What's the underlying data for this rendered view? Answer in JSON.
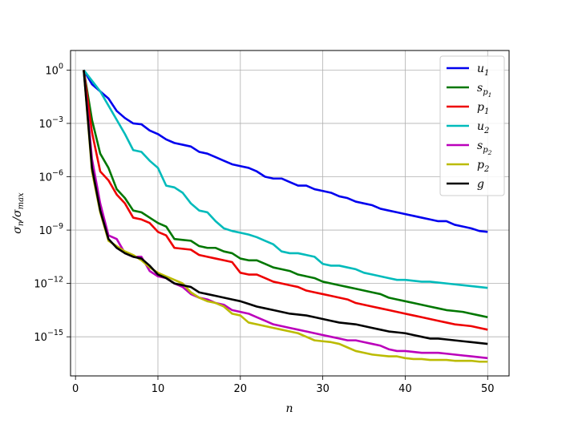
{
  "chart_data": {
    "type": "line",
    "xlabel": "n",
    "ylabel": "σn/σmax",
    "yscale": "log",
    "xlim": [
      -0.6,
      52.6
    ],
    "ylim_exp": [
      -17.2,
      1.1
    ],
    "grid": true,
    "legend_position": "top-right",
    "x_ticks": [
      {
        "value": 0,
        "label": "0"
      },
      {
        "value": 10,
        "label": "10"
      },
      {
        "value": 20,
        "label": "20"
      },
      {
        "value": 30,
        "label": "30"
      },
      {
        "value": 40,
        "label": "40"
      },
      {
        "value": 50,
        "label": "50"
      }
    ],
    "y_ticks": [
      {
        "exp": 0,
        "base": "10",
        "sup": "0"
      },
      {
        "exp": -3,
        "base": "10",
        "sup": "−3"
      },
      {
        "exp": -6,
        "base": "10",
        "sup": "−6"
      },
      {
        "exp": -9,
        "base": "10",
        "sup": "−9"
      },
      {
        "exp": -12,
        "base": "10",
        "sup": "−12"
      },
      {
        "exp": -15,
        "base": "10",
        "sup": "−15"
      }
    ],
    "x": [
      1,
      2,
      3,
      4,
      5,
      6,
      7,
      8,
      9,
      10,
      11,
      12,
      13,
      14,
      15,
      16,
      17,
      18,
      19,
      20,
      21,
      22,
      23,
      24,
      25,
      26,
      27,
      28,
      29,
      30,
      31,
      32,
      33,
      34,
      35,
      36,
      37,
      38,
      39,
      40,
      41,
      42,
      43,
      44,
      45,
      46,
      47,
      48,
      49,
      50
    ],
    "series": [
      {
        "name": "u1",
        "base": "u",
        "sub": "1",
        "color": "#0000ee",
        "log10_values": [
          0,
          -0.8,
          -1.2,
          -1.6,
          -2.3,
          -2.7,
          -3.0,
          -3.05,
          -3.4,
          -3.6,
          -3.9,
          -4.1,
          -4.2,
          -4.3,
          -4.6,
          -4.7,
          -4.9,
          -5.1,
          -5.3,
          -5.4,
          -5.5,
          -5.7,
          -6.0,
          -6.1,
          -6.1,
          -6.3,
          -6.5,
          -6.5,
          -6.7,
          -6.8,
          -6.9,
          -7.1,
          -7.2,
          -7.4,
          -7.5,
          -7.6,
          -7.8,
          -7.9,
          -8.0,
          -8.1,
          -8.2,
          -8.3,
          -8.4,
          -8.5,
          -8.5,
          -8.7,
          -8.8,
          -8.9,
          -9.05,
          -9.1
        ]
      },
      {
        "name": "sp1",
        "base": "s",
        "sub": "p",
        "subsub": "1",
        "color": "#007700",
        "log10_values": [
          0,
          -2.8,
          -4.7,
          -5.5,
          -6.7,
          -7.2,
          -7.9,
          -8.0,
          -8.3,
          -8.6,
          -8.8,
          -9.5,
          -9.55,
          -9.6,
          -9.9,
          -10.0,
          -10.0,
          -10.2,
          -10.3,
          -10.6,
          -10.7,
          -10.7,
          -10.9,
          -11.1,
          -11.2,
          -11.3,
          -11.5,
          -11.6,
          -11.7,
          -11.9,
          -12.0,
          -12.1,
          -12.2,
          -12.3,
          -12.4,
          -12.5,
          -12.6,
          -12.8,
          -12.9,
          -13.0,
          -13.1,
          -13.2,
          -13.3,
          -13.4,
          -13.5,
          -13.55,
          -13.6,
          -13.7,
          -13.8,
          -13.9
        ]
      },
      {
        "name": "p1",
        "base": "p",
        "sub": "1",
        "color": "#ee0000",
        "log10_values": [
          0,
          -3.5,
          -5.7,
          -6.2,
          -7.0,
          -7.5,
          -8.3,
          -8.4,
          -8.6,
          -9.1,
          -9.3,
          -10.0,
          -10.05,
          -10.1,
          -10.4,
          -10.5,
          -10.6,
          -10.7,
          -10.8,
          -11.4,
          -11.5,
          -11.5,
          -11.7,
          -11.9,
          -12.0,
          -12.1,
          -12.2,
          -12.4,
          -12.5,
          -12.6,
          -12.7,
          -12.8,
          -12.9,
          -13.1,
          -13.2,
          -13.3,
          -13.4,
          -13.5,
          -13.6,
          -13.7,
          -13.8,
          -13.9,
          -14.0,
          -14.1,
          -14.2,
          -14.3,
          -14.35,
          -14.4,
          -14.5,
          -14.6
        ]
      },
      {
        "name": "u2",
        "base": "u",
        "sub": "2",
        "color": "#00bbbb",
        "log10_values": [
          0,
          -0.6,
          -1.2,
          -2.0,
          -2.8,
          -3.6,
          -4.5,
          -4.6,
          -5.1,
          -5.5,
          -6.5,
          -6.6,
          -6.9,
          -7.5,
          -7.9,
          -8.0,
          -8.5,
          -8.9,
          -9.05,
          -9.15,
          -9.25,
          -9.4,
          -9.6,
          -9.8,
          -10.2,
          -10.3,
          -10.3,
          -10.4,
          -10.5,
          -10.9,
          -11.0,
          -11.0,
          -11.1,
          -11.2,
          -11.4,
          -11.5,
          -11.6,
          -11.7,
          -11.8,
          -11.8,
          -11.85,
          -11.9,
          -11.9,
          -11.95,
          -12.0,
          -12.05,
          -12.1,
          -12.15,
          -12.2,
          -12.25
        ]
      },
      {
        "name": "sp2",
        "base": "s",
        "sub": "p",
        "subsub": "2",
        "color": "#bb00bb",
        "log10_values": [
          0,
          -5.0,
          -7.5,
          -9.3,
          -9.5,
          -10.3,
          -10.5,
          -10.5,
          -11.3,
          -11.6,
          -11.7,
          -12.0,
          -12.2,
          -12.6,
          -12.8,
          -12.9,
          -13.1,
          -13.2,
          -13.5,
          -13.6,
          -13.7,
          -13.9,
          -14.1,
          -14.3,
          -14.4,
          -14.5,
          -14.6,
          -14.7,
          -14.8,
          -14.9,
          -15.0,
          -15.1,
          -15.2,
          -15.2,
          -15.3,
          -15.4,
          -15.5,
          -15.7,
          -15.8,
          -15.8,
          -15.85,
          -15.9,
          -15.9,
          -15.9,
          -15.95,
          -16.0,
          -16.05,
          -16.1,
          -16.15,
          -16.2
        ]
      },
      {
        "name": "p2",
        "base": "p",
        "sub": "2",
        "color": "#bbbb00",
        "log10_values": [
          0,
          -5.7,
          -8.0,
          -9.6,
          -9.9,
          -10.2,
          -10.4,
          -10.7,
          -11.1,
          -11.4,
          -11.6,
          -11.8,
          -12.0,
          -12.5,
          -12.8,
          -13.0,
          -13.1,
          -13.3,
          -13.7,
          -13.8,
          -14.2,
          -14.3,
          -14.4,
          -14.5,
          -14.6,
          -14.7,
          -14.8,
          -15.0,
          -15.2,
          -15.25,
          -15.3,
          -15.4,
          -15.6,
          -15.8,
          -15.9,
          -16.0,
          -16.05,
          -16.1,
          -16.1,
          -16.2,
          -16.25,
          -16.25,
          -16.3,
          -16.3,
          -16.3,
          -16.35,
          -16.35,
          -16.35,
          -16.4,
          -16.4
        ]
      },
      {
        "name": "g",
        "base": "g",
        "sub": "",
        "color": "#000000",
        "log10_values": [
          0,
          -5.5,
          -7.9,
          -9.5,
          -10.0,
          -10.3,
          -10.5,
          -10.6,
          -11.0,
          -11.5,
          -11.7,
          -12.0,
          -12.1,
          -12.2,
          -12.5,
          -12.6,
          -12.7,
          -12.8,
          -12.9,
          -13.0,
          -13.15,
          -13.3,
          -13.4,
          -13.5,
          -13.6,
          -13.7,
          -13.75,
          -13.8,
          -13.9,
          -14.0,
          -14.1,
          -14.2,
          -14.25,
          -14.3,
          -14.4,
          -14.5,
          -14.6,
          -14.7,
          -14.75,
          -14.8,
          -14.9,
          -15.0,
          -15.1,
          -15.1,
          -15.15,
          -15.2,
          -15.25,
          -15.3,
          -15.35,
          -15.4
        ]
      }
    ]
  }
}
